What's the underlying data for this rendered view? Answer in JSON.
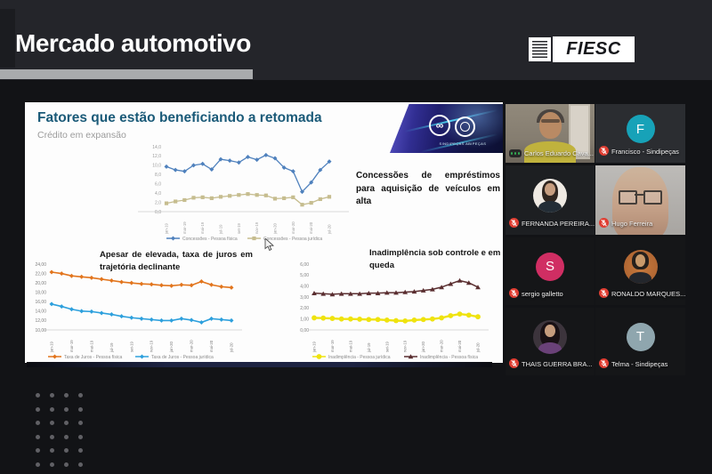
{
  "header": {
    "title": "Mercado automotivo",
    "brand": "FIESC"
  },
  "slide": {
    "title": "Fatores que estão beneficiando a retomada",
    "subtitle": "Crédito em expansão",
    "annotation": "Concessões de empréstimos para aquisição de veículos em alta",
    "logo_caption": "SINDIPEÇAS ABIPEÇAS"
  },
  "chart_data": [
    {
      "type": "line",
      "title": "",
      "categories": [
        "jan-19",
        "fev-19",
        "mar-19",
        "abr-19",
        "mai-19",
        "jun-19",
        "jul-19",
        "ago-19",
        "set-19",
        "out-19",
        "nov-19",
        "dez-19",
        "jan-20",
        "fev-20",
        "mar-20",
        "abr-20",
        "mai-20",
        "jun-20",
        "jul-20"
      ],
      "xtick_every": 2,
      "ylim": [
        0,
        14
      ],
      "yticks": [
        {
          "v": 14,
          "t": "14,0"
        },
        {
          "v": 12,
          "t": "12,0"
        },
        {
          "v": 10,
          "t": "10,0"
        },
        {
          "v": 8,
          "t": "8,0"
        },
        {
          "v": 6,
          "t": "6,0"
        },
        {
          "v": 4,
          "t": "4,0"
        },
        {
          "v": 2,
          "t": "2,0"
        },
        {
          "v": 0,
          "t": "0,0"
        }
      ],
      "grid": false,
      "legend_position": "bottom",
      "series": [
        {
          "name": "Concessões - Pessoa física",
          "color": "#4f81bd",
          "marker": "diamond",
          "values": [
            9.7,
            9.0,
            8.7,
            10.0,
            10.3,
            9.1,
            11.3,
            11.0,
            10.6,
            11.8,
            11.2,
            12.2,
            11.5,
            9.5,
            8.7,
            4.3,
            6.3,
            9.0,
            10.8
          ]
        },
        {
          "name": "Concessões - Pessoa jurídica",
          "color": "#c6bd8f",
          "marker": "square",
          "values": [
            1.8,
            2.2,
            2.5,
            3.0,
            3.1,
            2.9,
            3.2,
            3.4,
            3.6,
            3.8,
            3.6,
            3.5,
            2.8,
            2.9,
            3.1,
            1.5,
            1.9,
            2.7,
            3.2
          ]
        }
      ]
    },
    {
      "type": "line",
      "title": "Apesar de elevada, taxa de juros em trajetória declinante",
      "categories": [
        "jan-19",
        "fev-19",
        "mar-19",
        "abr-19",
        "mai-19",
        "jun-19",
        "jul-19",
        "ago-19",
        "set-19",
        "out-19",
        "nov-19",
        "dez-19",
        "jan-20",
        "fev-20",
        "mar-20",
        "abr-20",
        "mai-20",
        "jun-20",
        "jul-20"
      ],
      "xtick_every": 2,
      "ylim": [
        10,
        24
      ],
      "yticks": [
        {
          "v": 24,
          "t": "24,00"
        },
        {
          "v": 22,
          "t": "22,00"
        },
        {
          "v": 20,
          "t": "20,00"
        },
        {
          "v": 18,
          "t": "18,00"
        },
        {
          "v": 16,
          "t": "16,00"
        },
        {
          "v": 14,
          "t": "14,00"
        },
        {
          "v": 12,
          "t": "12,00"
        },
        {
          "v": 10,
          "t": "10,00"
        }
      ],
      "grid": false,
      "legend_position": "bottom",
      "series": [
        {
          "name": "Taxa de Juros - Pessoa física",
          "color": "#e2751d",
          "marker": "diamond",
          "values": [
            22.3,
            22.0,
            21.5,
            21.3,
            21.1,
            20.8,
            20.5,
            20.2,
            20.0,
            19.8,
            19.7,
            19.5,
            19.4,
            19.6,
            19.5,
            20.3,
            19.6,
            19.2,
            19.0
          ]
        },
        {
          "name": "Taxa de Juros - Pessoa jurídica",
          "color": "#2da0dd",
          "marker": "diamond",
          "values": [
            15.5,
            15.0,
            14.4,
            14.0,
            13.9,
            13.6,
            13.3,
            12.9,
            12.6,
            12.4,
            12.2,
            12.0,
            12.0,
            12.4,
            12.1,
            11.6,
            12.4,
            12.2,
            12.0
          ]
        }
      ]
    },
    {
      "type": "line",
      "title": "Inadimplência sob controle e em queda",
      "categories": [
        "jan-19",
        "fev-19",
        "mar-19",
        "abr-19",
        "mai-19",
        "jun-19",
        "jul-19",
        "ago-19",
        "set-19",
        "out-19",
        "nov-19",
        "dez-19",
        "jan-20",
        "fev-20",
        "mar-20",
        "abr-20",
        "mai-20",
        "jun-20",
        "jul-20"
      ],
      "xtick_every": 2,
      "ylim": [
        0,
        6
      ],
      "yticks": [
        {
          "v": 6,
          "t": "6,00"
        },
        {
          "v": 5,
          "t": "5,00"
        },
        {
          "v": 4,
          "t": "4,00"
        },
        {
          "v": 3,
          "t": "3,00"
        },
        {
          "v": 2,
          "t": "2,00"
        },
        {
          "v": 1,
          "t": "1,00"
        },
        {
          "v": 0,
          "t": "0,00"
        }
      ],
      "grid": false,
      "legend_position": "bottom",
      "series": [
        {
          "name": "Inadimplência - Pessoa jurídica",
          "color": "#efe30e",
          "marker": "circle",
          "values": [
            1.1,
            1.08,
            1.05,
            1.0,
            1.0,
            0.98,
            0.95,
            0.95,
            0.9,
            0.85,
            0.82,
            0.9,
            0.95,
            1.0,
            1.1,
            1.3,
            1.45,
            1.35,
            1.2
          ]
        },
        {
          "name": "Inadimplência - Pessoa física",
          "color": "#5a2e30",
          "marker": "triangle",
          "values": [
            3.35,
            3.3,
            3.25,
            3.3,
            3.3,
            3.3,
            3.35,
            3.35,
            3.4,
            3.4,
            3.45,
            3.5,
            3.6,
            3.7,
            3.9,
            4.2,
            4.5,
            4.3,
            3.9
          ]
        }
      ]
    }
  ],
  "participants": [
    {
      "name": "Carlos Eduardo Cava...",
      "kind": "video",
      "scene": "carlos",
      "status": "speaking",
      "bg": "#6e675c"
    },
    {
      "name": "Francisco - Sindipeças",
      "kind": "initial",
      "initial": "F",
      "avatar_color": "#17a2b8",
      "bg": "#2b2d31",
      "status": "muted"
    },
    {
      "name": "FERNANDA PEREIRA...",
      "kind": "photo",
      "scene": "fernanda",
      "bg": "#1d1f22",
      "status": "muted"
    },
    {
      "name": "Hugo Ferreira",
      "kind": "video",
      "scene": "hugo",
      "status": "muted",
      "bg": "#a8a5a1"
    },
    {
      "name": "sergio galletto",
      "kind": "initial",
      "initial": "S",
      "avatar_color": "#d02e63",
      "bg": "#151618",
      "status": "muted"
    },
    {
      "name": "RONALDO MARQUES...",
      "kind": "photo",
      "scene": "ronaldo",
      "bg": "#151618",
      "status": "muted"
    },
    {
      "name": "THAIS GUERRA BRA...",
      "kind": "photo",
      "scene": "thais",
      "bg": "#151618",
      "status": "muted"
    },
    {
      "name": "Telma - Sindipeças",
      "kind": "initial",
      "initial": "T",
      "avatar_color": "#8fa6ae",
      "bg": "#151618",
      "status": "muted"
    }
  ],
  "decor": {
    "dots": {
      "rows": 6,
      "cols": 4
    }
  },
  "colors": {
    "slide_title": "#1a5a78",
    "header_underline": "#a9abad",
    "mic_muted": "#df3e32",
    "speaking_indicator": "#34a853"
  }
}
